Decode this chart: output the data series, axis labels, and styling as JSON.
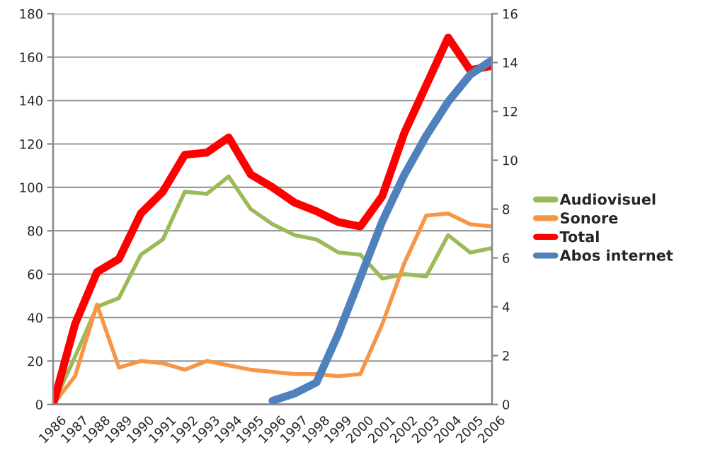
{
  "chart_data": {
    "type": "line",
    "categories": [
      "1986",
      "1987",
      "1988",
      "1989",
      "1990",
      "1991",
      "1992",
      "1993",
      "1994",
      "1995",
      "1996",
      "1997",
      "1998",
      "1999",
      "2000",
      "2001",
      "2002",
      "2003",
      "2004",
      "2005",
      "2006"
    ],
    "series": [
      {
        "name": "Audiovisuel",
        "color": "#9bbb59",
        "values": [
          0,
          22,
          45,
          49,
          69,
          76,
          98,
          97,
          105,
          90,
          83,
          78,
          76,
          70,
          69,
          58,
          60,
          59,
          78,
          70,
          72
        ]
      },
      {
        "name": "Sonore",
        "color": "#f79646",
        "values": [
          0,
          13,
          46,
          17,
          20,
          19,
          16,
          20,
          18,
          16,
          15,
          14,
          14,
          13,
          14,
          37,
          65,
          87,
          88,
          83,
          82
        ]
      },
      {
        "name": "Total",
        "color": "#ff0000",
        "values": [
          0,
          37,
          61,
          67,
          88,
          98,
          115,
          116,
          123,
          106,
          100,
          93,
          89,
          84,
          82,
          96,
          125,
          147,
          169,
          154,
          156
        ]
      },
      {
        "name": "Abos internet",
        "color": "#4f81bd",
        "axis": "y2",
        "values": [
          null,
          null,
          null,
          null,
          null,
          null,
          null,
          null,
          null,
          null,
          0.15,
          0.45,
          0.9,
          2.9,
          5.2,
          7.5,
          9.4,
          11,
          12.4,
          13.5,
          14.1
        ]
      }
    ],
    "ylim": [
      0,
      180
    ],
    "yticks": [
      0,
      20,
      40,
      60,
      80,
      100,
      120,
      140,
      160,
      180
    ],
    "y2lim": [
      0,
      16
    ],
    "y2ticks": [
      0,
      2,
      4,
      6,
      8,
      10,
      12,
      14,
      16
    ],
    "grid": "y",
    "legend": "right",
    "marker": "none",
    "line_style": "solid"
  }
}
